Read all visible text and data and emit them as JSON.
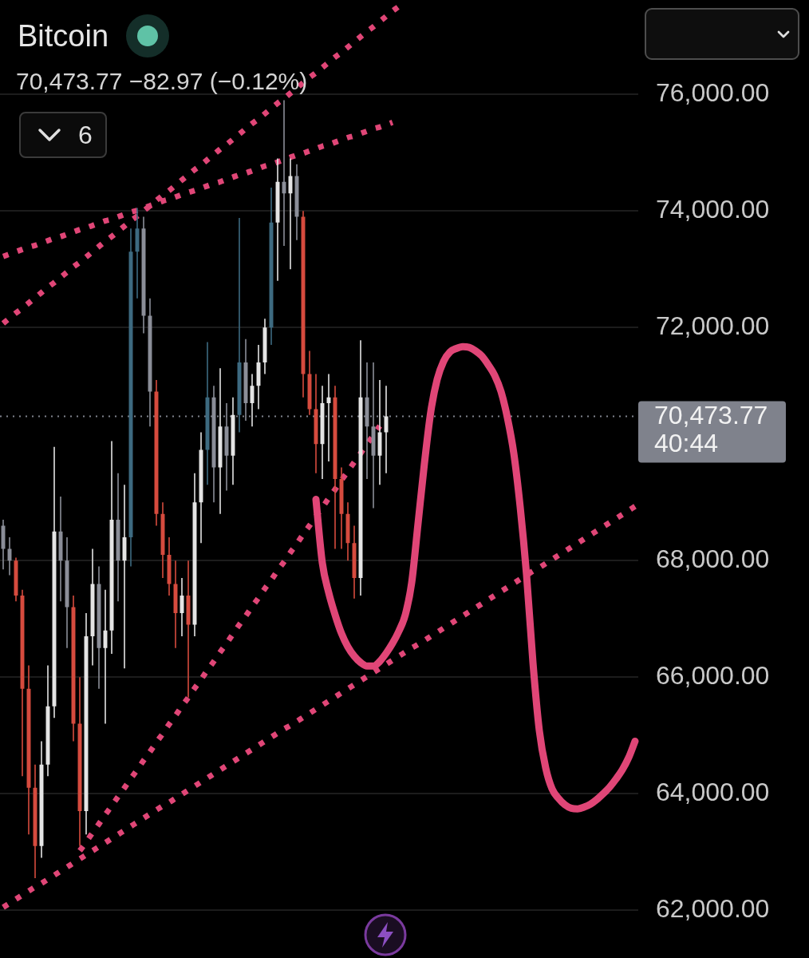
{
  "chart_data": {
    "type": "candlestick",
    "title": "Bitcoin",
    "subtitle": "70,473.77 −82.97 (−0.12%)",
    "categories": [
      null,
      null,
      null,
      null,
      null,
      null,
      null,
      null,
      null,
      null,
      null,
      null,
      null,
      null,
      null,
      null,
      null,
      null,
      null,
      null,
      null,
      null,
      null,
      null,
      null,
      null,
      null,
      null,
      null,
      null,
      null,
      null,
      null,
      null,
      null,
      null,
      null,
      null,
      null,
      null,
      null,
      null,
      null,
      null,
      null,
      null,
      null,
      null,
      null,
      null,
      null,
      null,
      null,
      null,
      null,
      null,
      null,
      null,
      null,
      null,
      null,
      null,
      null,
      null,
      null,
      null,
      null,
      null,
      null,
      null,
      null,
      null,
      null,
      null,
      null,
      null,
      null,
      null,
      null,
      null,
      null,
      null,
      null,
      null,
      null,
      null,
      null,
      null,
      null,
      null,
      null,
      null,
      null,
      null,
      null,
      null,
      null,
      null,
      null,
      null
    ],
    "ohlc": [
      [
        68600,
        68700,
        67850,
        68200
      ],
      [
        68200,
        68400,
        67750,
        68000
      ],
      [
        68000,
        68050,
        67300,
        67400
      ],
      [
        67400,
        67500,
        64300,
        65800
      ],
      [
        65800,
        66200,
        63300,
        64100
      ],
      [
        64100,
        64500,
        62550,
        63100
      ],
      [
        63100,
        64900,
        62900,
        64500
      ],
      [
        64500,
        66200,
        64300,
        65500
      ],
      [
        65500,
        69950,
        65300,
        68500
      ],
      [
        68500,
        69100,
        67300,
        68000
      ],
      [
        68000,
        68400,
        66500,
        67200
      ],
      [
        67200,
        67400,
        64900,
        65200
      ],
      [
        65200,
        66000,
        63100,
        63700
      ],
      [
        63700,
        67100,
        63300,
        66700
      ],
      [
        66700,
        68200,
        66200,
        67600
      ],
      [
        67600,
        67900,
        65800,
        66500
      ],
      [
        66500,
        67500,
        65200,
        66800
      ],
      [
        66800,
        70050,
        66400,
        68700
      ],
      [
        68700,
        69500,
        67300,
        68000
      ],
      [
        68000,
        69300,
        66150,
        68400
      ],
      [
        68400,
        73700,
        67900,
        73300
      ],
      [
        73300,
        74050,
        72500,
        73700
      ],
      [
        73700,
        73900,
        71900,
        72200
      ],
      [
        72200,
        72500,
        70300,
        70900
      ],
      [
        70900,
        71100,
        68600,
        68800
      ],
      [
        68800,
        69000,
        67700,
        68100
      ],
      [
        68100,
        68400,
        67400,
        67600
      ],
      [
        67600,
        68000,
        66500,
        67100
      ],
      [
        67100,
        67700,
        66700,
        67400
      ],
      [
        67400,
        68000,
        65650,
        66900
      ],
      [
        66900,
        69500,
        66700,
        69000
      ],
      [
        69000,
        70200,
        68300,
        69900
      ],
      [
        69900,
        71750,
        69300,
        70800
      ],
      [
        70800,
        71000,
        69000,
        69600
      ],
      [
        69600,
        71300,
        68800,
        70300
      ],
      [
        70300,
        70700,
        69200,
        69800
      ],
      [
        69800,
        70800,
        69300,
        70500
      ],
      [
        70500,
        73880,
        70200,
        71400
      ],
      [
        71400,
        71800,
        70400,
        70700
      ],
      [
        70700,
        71200,
        70300,
        71000
      ],
      [
        71000,
        71700,
        70600,
        71400
      ],
      [
        71400,
        72150,
        71200,
        72000
      ],
      [
        72000,
        74400,
        71700,
        73800
      ],
      [
        73800,
        74900,
        72800,
        74500
      ],
      [
        74500,
        75900,
        73400,
        74300
      ],
      [
        74300,
        74900,
        73000,
        74600
      ],
      [
        74600,
        74800,
        73500,
        73900
      ],
      [
        73900,
        74000,
        70800,
        71200
      ],
      [
        71200,
        71600,
        70500,
        70600
      ],
      [
        70600,
        71200,
        69500,
        70000
      ],
      [
        70000,
        71000,
        69400,
        70700
      ],
      [
        70700,
        71200,
        69700,
        70800
      ],
      [
        70800,
        71000,
        68200,
        69400
      ],
      [
        69400,
        69600,
        68200,
        68800
      ],
      [
        68800,
        69000,
        68000,
        68300
      ],
      [
        68300,
        68600,
        67350,
        67700
      ],
      [
        67700,
        71780,
        67400,
        70800
      ],
      [
        70800,
        71400,
        69400,
        70300
      ],
      [
        70300,
        71400,
        68900,
        69800
      ],
      [
        69800,
        71100,
        69300,
        70200
      ],
      [
        70200,
        71000,
        69500,
        70473.77
      ],
      null,
      null,
      null,
      null,
      null,
      null,
      null,
      null,
      null,
      null,
      null,
      null,
      null,
      null,
      null,
      null,
      null,
      null,
      null,
      null,
      null,
      null,
      null,
      null,
      null,
      null,
      null,
      null,
      null,
      null,
      null,
      null,
      null,
      null,
      null,
      null,
      null,
      null,
      null
    ],
    "colors": [
      "#8b8e98",
      "#8b8e98",
      "#d64b3e",
      "#d64b3e",
      "#d64b3e",
      "#d64b3e",
      "#e4e4e4",
      "#e4e4e4",
      "#e4e4e4",
      "#8b8e98",
      "#8b8e98",
      "#d64b3e",
      "#d64b3e",
      "#e4e4e4",
      "#e4e4e4",
      "#8b8e98",
      "#e4e4e4",
      "#e4e4e4",
      "#8b8e98",
      "#e4e4e4",
      "#3d6a80",
      "#3d6a80",
      "#8b8e98",
      "#8b8e98",
      "#d64b3e",
      "#d64b3e",
      "#d64b3e",
      "#d64b3e",
      "#e4e4e4",
      "#d64b3e",
      "#e4e4e4",
      "#e4e4e4",
      "#3d6a80",
      "#8b8e98",
      "#e4e4e4",
      "#8b8e98",
      "#e4e4e4",
      "#3d6a80",
      "#8b8e98",
      "#e4e4e4",
      "#e4e4e4",
      "#e4e4e4",
      "#3d6a80",
      "#e4e4e4",
      "#8b8e98",
      "#e4e4e4",
      "#8b8e98",
      "#d64b3e",
      "#d64b3e",
      "#d64b3e",
      "#e4e4e4",
      "#e4e4e4",
      "#d64b3e",
      "#d64b3e",
      "#d64b3e",
      "#d64b3e",
      "#e4e4e4",
      "#8b8e98",
      "#8b8e98",
      "#e4e4e4",
      "#e4e4e4",
      null,
      null,
      null,
      null,
      null,
      null,
      null,
      null,
      null,
      null,
      null,
      null,
      null,
      null,
      null,
      null,
      null,
      null,
      null,
      null,
      null,
      null,
      null,
      null,
      null,
      null,
      null,
      null,
      null,
      null,
      null,
      null,
      null,
      null,
      null,
      null,
      null,
      null,
      null
    ],
    "series": [
      {
        "type": "line",
        "color": "#e04677",
        "line_style": "dotted",
        "values": [
          73220,
          73260,
          73300,
          73340,
          73380,
          73410,
          73450,
          73490,
          73530,
          73560,
          73600,
          73640,
          73680,
          73710,
          73750,
          73790,
          73830,
          73860,
          73900,
          73940,
          73980,
          74010,
          74050,
          74090,
          74130,
          74170,
          74200,
          74240,
          74280,
          74320,
          74350,
          74390,
          74430,
          74470,
          74500,
          74540,
          74580,
          74620,
          74650,
          74690,
          74730,
          74770,
          74800,
          74840,
          74880,
          74920,
          74960,
          74990,
          75030,
          75070,
          75110,
          75140,
          75180,
          75220,
          75260,
          75290,
          75330,
          75370,
          75410,
          75440,
          75480,
          75520,
          null,
          null,
          null,
          null,
          null,
          null,
          null,
          null,
          null,
          null,
          null,
          null,
          null,
          null,
          null,
          null,
          null,
          null,
          null,
          null,
          null,
          null,
          null,
          null,
          null,
          null,
          null,
          null,
          null,
          null,
          null,
          null,
          null,
          null,
          null,
          null,
          null,
          null
        ]
      },
      {
        "type": "line",
        "color": "#e04677",
        "line_style": "dotted",
        "values": [
          72070,
          72160,
          72250,
          72330,
          72420,
          72510,
          72600,
          72690,
          72770,
          72860,
          72950,
          73040,
          73120,
          73210,
          73300,
          73390,
          73480,
          73560,
          73650,
          73740,
          73830,
          73910,
          74000,
          74090,
          74180,
          74270,
          74350,
          74440,
          74530,
          74620,
          74710,
          74790,
          74880,
          74970,
          75060,
          75140,
          75230,
          75320,
          75410,
          75500,
          75580,
          75670,
          75760,
          75850,
          75930,
          76020,
          76110,
          76200,
          76290,
          76370,
          76460,
          76550,
          76640,
          76720,
          76810,
          76900,
          76990,
          77080,
          77160,
          77250,
          77340,
          77430,
          77510,
          77600,
          null,
          null,
          null,
          null,
          null,
          null,
          null,
          null,
          null,
          null,
          null,
          null,
          null,
          null,
          null,
          null,
          null,
          null,
          null,
          null,
          null,
          null,
          null,
          null,
          null,
          null,
          null,
          null,
          null,
          null,
          null,
          null,
          null,
          null,
          null,
          null
        ]
      },
      {
        "type": "line",
        "color": "#e04677",
        "line_style": "dotted",
        "values": [
          62050,
          62120,
          62190,
          62260,
          62330,
          62400,
          62460,
          62530,
          62600,
          62670,
          62740,
          62810,
          62880,
          62950,
          63020,
          63090,
          63160,
          63230,
          63300,
          63370,
          63440,
          63510,
          63580,
          63650,
          63720,
          63790,
          63850,
          63920,
          63990,
          64060,
          64130,
          64200,
          64270,
          64340,
          64410,
          64480,
          64550,
          64620,
          64690,
          64760,
          64830,
          64900,
          64970,
          65040,
          65110,
          65170,
          65240,
          65310,
          65380,
          65450,
          65520,
          65590,
          65660,
          65730,
          65800,
          65870,
          65940,
          66010,
          66080,
          66150,
          66220,
          66290,
          66360,
          66430,
          66500,
          66560,
          66630,
          66700,
          66770,
          66840,
          66910,
          66980,
          67050,
          67120,
          67190,
          67260,
          67330,
          67400,
          67470,
          67540,
          67610,
          67680,
          67750,
          67820,
          67880,
          67950,
          68020,
          68090,
          68160,
          68230,
          68300,
          68370,
          68440,
          68510,
          68580,
          68650,
          68720,
          68790,
          68860,
          68930
        ]
      },
      {
        "type": "line",
        "color": "#e04677",
        "line_style": "dotted",
        "values": [
          null,
          null,
          null,
          null,
          null,
          null,
          null,
          null,
          null,
          null,
          null,
          null,
          63020,
          63170,
          63330,
          63480,
          63640,
          63790,
          63950,
          64100,
          64260,
          64410,
          64570,
          64720,
          64880,
          65030,
          65190,
          65340,
          65500,
          65650,
          65810,
          65960,
          66120,
          66270,
          66430,
          66580,
          66740,
          66900,
          67050,
          67210,
          67360,
          67520,
          67670,
          67830,
          67980,
          68140,
          68290,
          68450,
          68600,
          68760,
          68910,
          69070,
          69220,
          69380,
          69530,
          69690,
          69840,
          70000,
          70150,
          70310,
          null,
          null,
          null,
          null,
          null,
          null,
          null,
          null,
          null,
          null,
          null,
          null,
          null,
          null,
          null,
          null,
          null,
          null,
          null,
          null,
          null,
          null,
          null,
          null,
          null,
          null,
          null,
          null,
          null,
          null,
          null,
          null,
          null,
          null,
          null,
          null,
          null,
          null,
          null,
          null
        ]
      },
      {
        "type": "line",
        "color": "#e04677",
        "line_style": "solid",
        "values": [
          null,
          null,
          null,
          null,
          null,
          null,
          null,
          null,
          null,
          null,
          null,
          null,
          null,
          null,
          null,
          null,
          null,
          null,
          null,
          null,
          null,
          null,
          null,
          null,
          null,
          null,
          null,
          null,
          null,
          null,
          null,
          null,
          null,
          null,
          null,
          null,
          null,
          null,
          null,
          null,
          null,
          null,
          null,
          null,
          null,
          null,
          null,
          null,
          null,
          69050,
          67960,
          67450,
          67070,
          66750,
          66520,
          66360,
          66250,
          66190,
          66190,
          66270,
          66410,
          66580,
          66790,
          67070,
          67620,
          68640,
          69670,
          70560,
          71110,
          71420,
          71580,
          71640,
          71670,
          71660,
          71600,
          71510,
          71360,
          71180,
          70900,
          70450,
          69840,
          68920,
          67750,
          66250,
          65080,
          64440,
          64080,
          63920,
          63810,
          63750,
          63740,
          63770,
          63820,
          63900,
          64000,
          64110,
          64250,
          64410,
          64620,
          64900
        ]
      }
    ],
    "ylim": [
      61180,
      77620
    ],
    "yticks": [
      {
        "value": 62000,
        "label": "62,000.00"
      },
      {
        "value": 64000,
        "label": "64,000.00"
      },
      {
        "value": 66000,
        "label": "66,000.00"
      },
      {
        "value": 68000,
        "label": "68,000.00"
      },
      {
        "value": 72000,
        "label": "72,000.00"
      },
      {
        "value": 74000,
        "label": "74,000.00"
      },
      {
        "value": 76000,
        "label": "76,000.00"
      }
    ],
    "ref_lines": [
      {
        "axis": "y",
        "value": 70473.77,
        "label": "70,473.77\n40:44",
        "color": "#7f828c",
        "line_style": "dotted"
      }
    ],
    "annotations": [
      "6"
    ],
    "tick_labels": "y",
    "grid": "y"
  }
}
